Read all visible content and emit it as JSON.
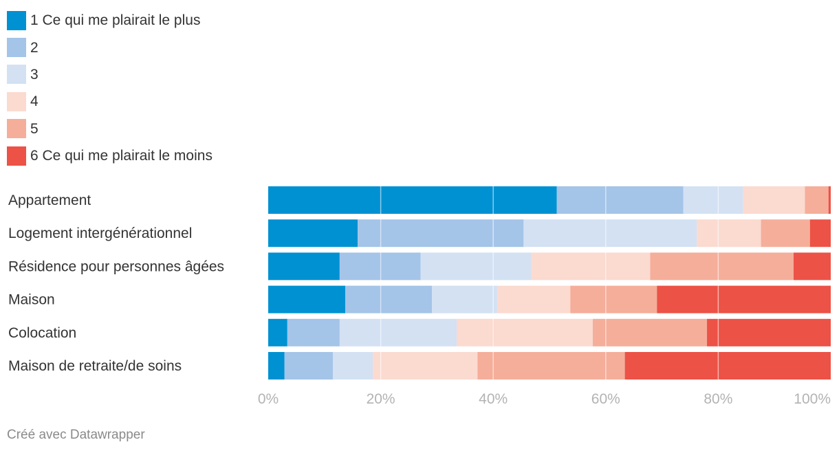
{
  "chart_data": {
    "type": "bar",
    "orientation": "horizontal",
    "stacked": true,
    "title": "",
    "xlabel": "",
    "ylabel": "",
    "xlim": [
      0,
      100
    ],
    "categories": [
      "Appartement",
      "Logement intergénérationnel",
      "Résidence pour personnes âgées",
      "Maison",
      "Colocation",
      "Maison de retraite/de soins"
    ],
    "series": [
      {
        "name": "1 Ce qui me plairait le plus",
        "color": "#0091d2",
        "values": [
          51.3,
          15.9,
          12.7,
          13.7,
          3.4,
          2.9
        ]
      },
      {
        "name": "2",
        "color": "#a4c4e8",
        "values": [
          22.5,
          29.5,
          14.4,
          15.4,
          9.3,
          8.6
        ]
      },
      {
        "name": "3",
        "color": "#d3e1f3",
        "values": [
          10.6,
          30.8,
          19.6,
          11.6,
          20.8,
          7.1
        ]
      },
      {
        "name": "4",
        "color": "#fbdad0",
        "values": [
          11.0,
          11.4,
          21.2,
          13.0,
          24.2,
          18.6
        ]
      },
      {
        "name": "5",
        "color": "#f5ae9a",
        "values": [
          4.2,
          8.7,
          25.5,
          15.4,
          20.3,
          26.2
        ]
      },
      {
        "name": "6 Ce qui me plairait le moins",
        "color": "#ec5246",
        "values": [
          0.4,
          3.7,
          6.6,
          30.9,
          22.0,
          36.6
        ]
      }
    ],
    "ticks": [
      "0%",
      "20%",
      "40%",
      "60%",
      "80%",
      "100%"
    ],
    "tick_values": [
      0,
      20,
      40,
      60,
      80,
      100
    ],
    "grid": true,
    "legend": "top-left"
  },
  "credit": "Créé avec Datawrapper"
}
